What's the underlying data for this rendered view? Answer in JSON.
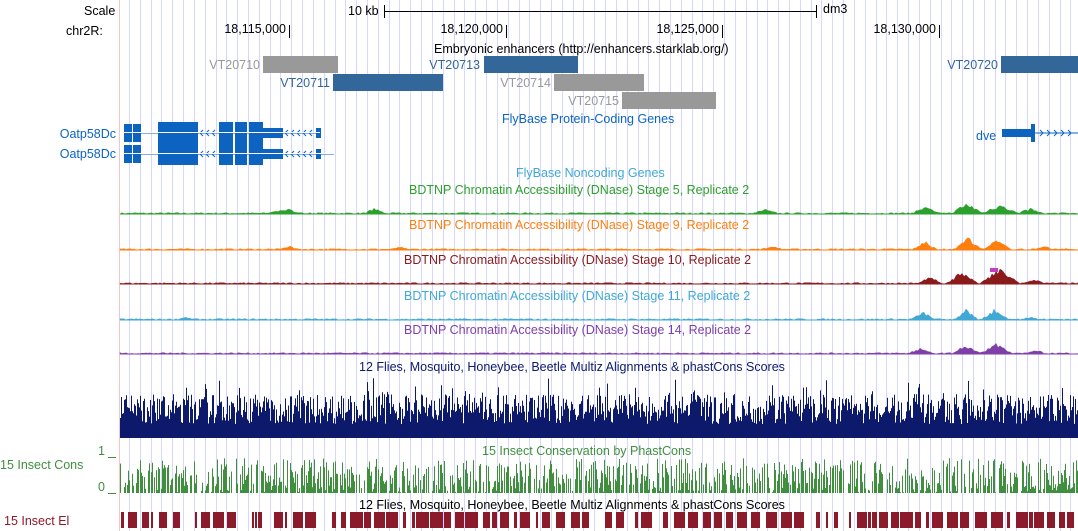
{
  "header": {
    "scale_label": "Scale",
    "chrom_label": "chr2R:",
    "scalebar_label": "10 kb",
    "assembly": "dm3",
    "ticks": [
      "18,115,000",
      "18,120,000",
      "18,125,000",
      "18,130,000"
    ]
  },
  "enhancers": {
    "title": "Embryonic enhancers (http://enhancers.starklab.org/)",
    "items": [
      {
        "name": "VT20710",
        "color": "#999999"
      },
      {
        "name": "VT20711",
        "color": "#336699"
      },
      {
        "name": "VT20713",
        "color": "#336699"
      },
      {
        "name": "VT20714",
        "color": "#999999"
      },
      {
        "name": "VT20715",
        "color": "#999999"
      },
      {
        "name": "VT20720",
        "color": "#336699"
      }
    ]
  },
  "genes": {
    "title": "FlyBase Protein-Coding Genes",
    "left_gene_1": "Oatp58Dc",
    "left_gene_2": "Oatp58Dc",
    "right_gene": "dve",
    "color": "#0C64C0"
  },
  "noncoding": {
    "title": "FlyBase Noncoding Genes"
  },
  "dnase_tracks": [
    {
      "title": "BDTNP Chromatin Accessibility (DNase) Stage 5, Replicate 2",
      "color": "#2CA02C"
    },
    {
      "title": "BDTNP Chromatin Accessibility (DNase) Stage 9, Replicate 2",
      "color": "#FF7F0E"
    },
    {
      "title": "BDTNP Chromatin Accessibility (DNase) Stage 10, Replicate 2",
      "color": "#8B1A1A"
    },
    {
      "title": "BDTNP Chromatin Accessibility (DNase) Stage 11, Replicate 2",
      "color": "#3FA9D4"
    },
    {
      "title": "BDTNP Chromatin Accessibility (DNase) Stage 14, Replicate 2",
      "color": "#7F3FA9"
    }
  ],
  "multiz": {
    "title": "12 Flies, Mosquito, Honeybee, Beetle Multiz Alignments & phastCons Scores",
    "color": "#0D1A6B"
  },
  "phastcons": {
    "title": "15 Insect Conservation by PhastCons",
    "side_label": "15 Insect Cons",
    "axis_top": "1",
    "axis_bottom": "0",
    "color": "#3F8F3F"
  },
  "elements": {
    "title": "12 Flies, Mosquito, Honeybee, Beetle Multiz Alignments & phastCons Scores",
    "side_label": "15 Insect El",
    "color": "#8B1A2A"
  }
}
